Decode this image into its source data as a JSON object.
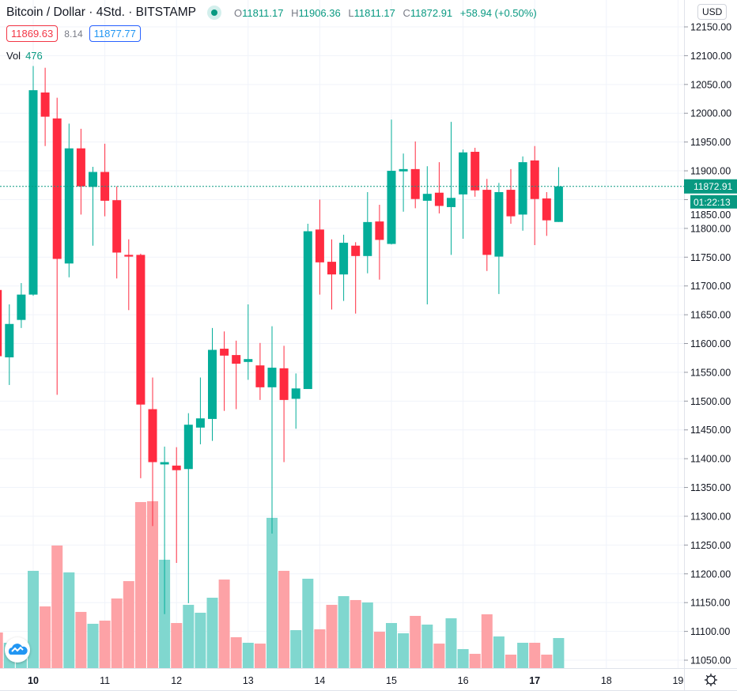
{
  "header": {
    "title": "Bitcoin / Dollar · 4Std. · BITSTAMP",
    "o_label": "O",
    "o": "11811.17",
    "h_label": "H",
    "h": "11906.36",
    "l_label": "L",
    "l": "11811.17",
    "c_label": "C",
    "c": "11872.91",
    "change": "+58.94 (+0.50%)",
    "status_icon": "market-open-dot-icon"
  },
  "quotes": {
    "bid": "11869.63",
    "spread": "8.14",
    "ask": "11877.77"
  },
  "volume_legend": {
    "label": "Vol",
    "value": "476"
  },
  "currency_button": "USD",
  "price_tag": "11872.91",
  "countdown": "01:22:13",
  "colors": {
    "up": "#03ad99",
    "down": "#ff2b40",
    "vol_up": "#80d7cf",
    "vol_down": "#fda2a6",
    "grid": "#f0f3fa",
    "price_line": "#089981"
  },
  "chart_data": {
    "type": "candlestick",
    "interval": "4h",
    "ylim": [
      11050,
      12150
    ],
    "y_ticks": [
      "12150.00",
      "12100.00",
      "12050.00",
      "12000.00",
      "11950.00",
      "11900.00",
      "11850.00",
      "11800.00",
      "11750.00",
      "11700.00",
      "11650.00",
      "11600.00",
      "11550.00",
      "11500.00",
      "11450.00",
      "11400.00",
      "11350.00",
      "11300.00",
      "11250.00",
      "11200.00",
      "11150.00",
      "11100.00",
      "11050.00"
    ],
    "x_ticks": [
      "10",
      "11",
      "12",
      "13",
      "14",
      "15",
      "16",
      "17",
      "18",
      "19"
    ],
    "grid": true,
    "last_price": 11872.91,
    "candles_columns": [
      "open",
      "high",
      "low",
      "close",
      "volume"
    ],
    "candles": [
      [
        11693,
        11700,
        11560,
        11578,
        564
      ],
      [
        11576,
        11668,
        11528,
        11634,
        401
      ],
      [
        11641,
        11705,
        11627,
        11685,
        376
      ],
      [
        11685,
        12082,
        11683,
        12040,
        1541
      ],
      [
        12036,
        12079,
        11943,
        11994,
        977
      ],
      [
        11991,
        12027,
        11511,
        11747,
        1942
      ],
      [
        11739,
        11982,
        11715,
        11939,
        1516
      ],
      [
        11939,
        11973,
        11824,
        11873,
        890
      ],
      [
        11872,
        11907,
        11770,
        11898,
        702
      ],
      [
        11898,
        11947,
        11821,
        11848,
        752
      ],
      [
        11849,
        11873,
        11713,
        11758,
        1103
      ],
      [
        11754,
        11781,
        11658,
        11751,
        1378
      ],
      [
        11754,
        11756,
        11366,
        11494,
        2631
      ],
      [
        11486,
        11541,
        11283,
        11394,
        2644
      ],
      [
        11390,
        11421,
        11130,
        11394,
        1717
      ],
      [
        11388,
        11420,
        11219,
        11380,
        714
      ],
      [
        11382,
        11479,
        11149,
        11459,
        1002
      ],
      [
        11454,
        11541,
        11425,
        11470,
        877
      ],
      [
        11469,
        11627,
        11431,
        11589,
        1115
      ],
      [
        11591,
        11621,
        11483,
        11579,
        1403
      ],
      [
        11580,
        11605,
        11486,
        11565,
        489
      ],
      [
        11568,
        11668,
        11537,
        11573,
        401
      ],
      [
        11562,
        11601,
        11502,
        11524,
        388
      ],
      [
        11524,
        11630,
        11270,
        11558,
        2381
      ],
      [
        11557,
        11596,
        11394,
        11502,
        1541
      ],
      [
        11504,
        11548,
        11452,
        11522,
        601
      ],
      [
        11521,
        11808,
        11521,
        11795,
        1416
      ],
      [
        11798,
        11850,
        11685,
        11741,
        614
      ],
      [
        11742,
        11781,
        11659,
        11720,
        1002
      ],
      [
        11720,
        11789,
        11674,
        11775,
        1140
      ],
      [
        11770,
        11776,
        11652,
        11752,
        1078
      ],
      [
        11752,
        11863,
        11722,
        11811,
        1040
      ],
      [
        11812,
        11841,
        11711,
        11780,
        576
      ],
      [
        11773,
        11989,
        11772,
        11900,
        714
      ],
      [
        11899,
        11930,
        11829,
        11903,
        551
      ],
      [
        11903,
        11951,
        11835,
        11851,
        827
      ],
      [
        11848,
        11908,
        11668,
        11860,
        689
      ],
      [
        11862,
        11915,
        11826,
        11839,
        388
      ],
      [
        11837,
        11985,
        11754,
        11853,
        789
      ],
      [
        11859,
        11937,
        11782,
        11932,
        301
      ],
      [
        11933,
        11940,
        11855,
        11866,
        226
      ],
      [
        11867,
        11886,
        11726,
        11754,
        852
      ],
      [
        11751,
        11879,
        11686,
        11863,
        501
      ],
      [
        11867,
        11903,
        11808,
        11821,
        213
      ],
      [
        11824,
        11925,
        11796,
        11915,
        401
      ],
      [
        11918,
        11943,
        11771,
        11851,
        401
      ],
      [
        11852,
        11863,
        11787,
        11814,
        213
      ],
      [
        11811.17,
        11906.36,
        11811.17,
        11872.91,
        476
      ]
    ]
  }
}
